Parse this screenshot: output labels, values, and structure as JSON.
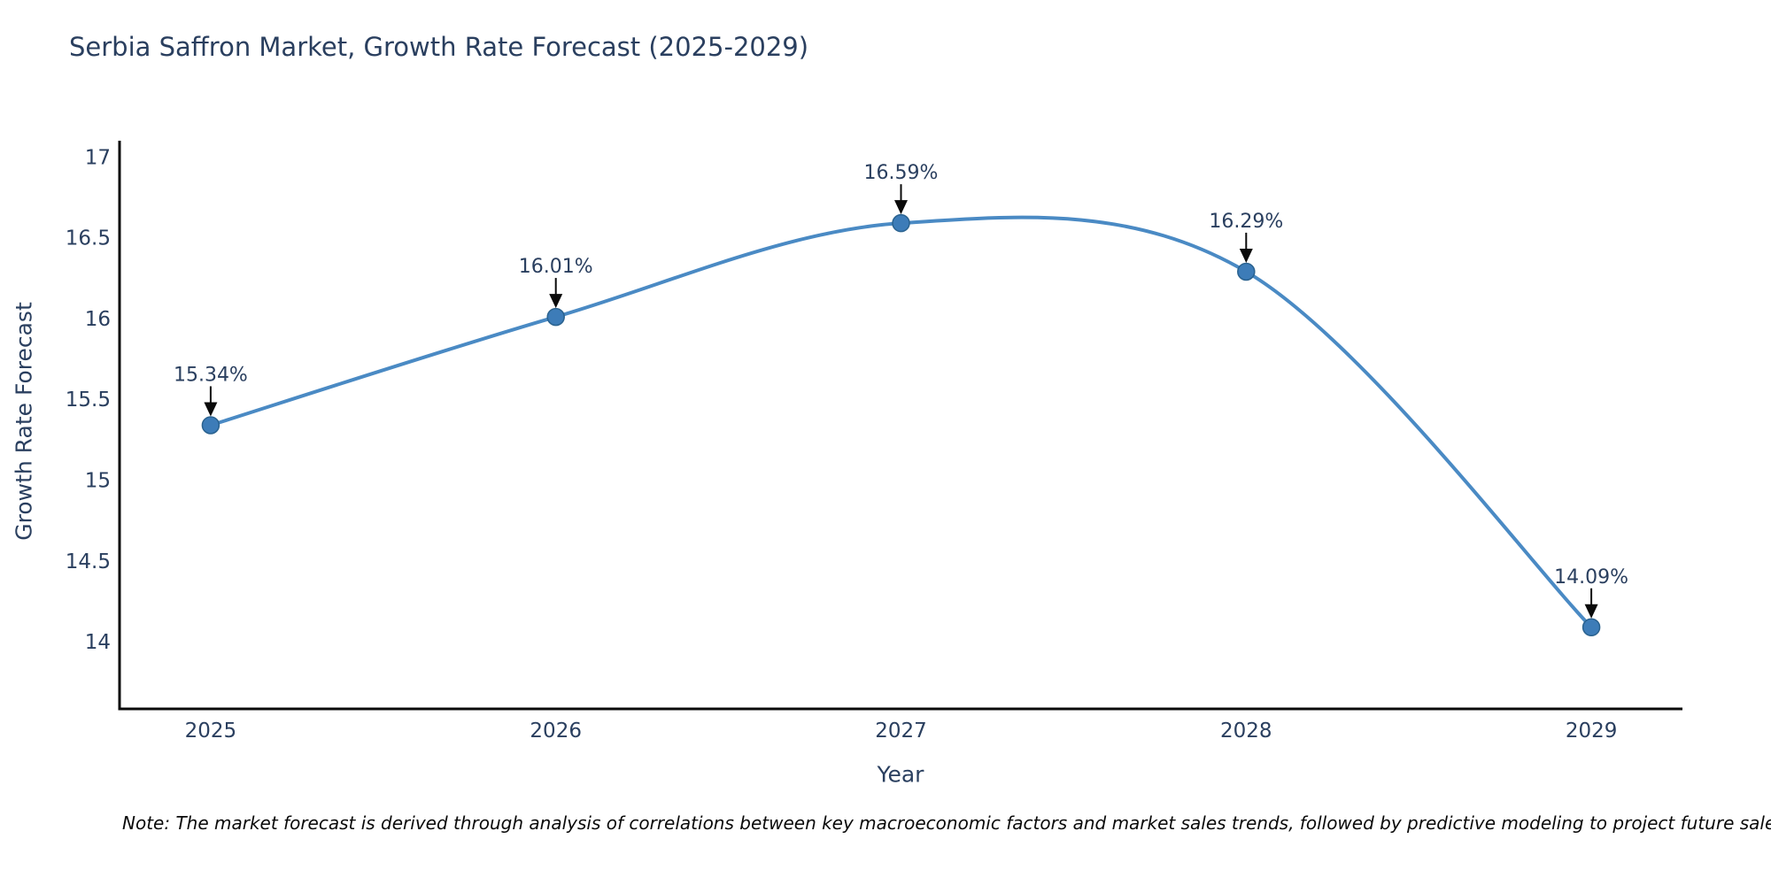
{
  "title": "Serbia Saffron Market, Growth Rate Forecast (2025-2029)",
  "note": "Note: The market forecast is derived through analysis of correlations between key macroeconomic factors and market sales trends, followed by predictive modeling to project future sales",
  "chart_data": {
    "type": "line",
    "title": "Serbia Saffron Market, Growth Rate Forecast (2025-2029)",
    "xlabel": "Year",
    "ylabel": "Growth Rate Forecast",
    "categories": [
      "2025",
      "2026",
      "2027",
      "2028",
      "2029"
    ],
    "series": [
      {
        "name": "Growth Rate Forecast",
        "values": [
          15.34,
          16.01,
          16.59,
          16.29,
          14.09
        ]
      }
    ],
    "point_labels": [
      "15.34%",
      "16.01%",
      "16.59%",
      "16.29%",
      "14.09%"
    ],
    "y_ticks": [
      14,
      14.5,
      15,
      15.5,
      16,
      16.5,
      17
    ],
    "ylim": [
      13.585,
      17.1
    ],
    "grid": false,
    "legend": "none",
    "line_shape": "spline",
    "colors": {
      "line": "#4a8ac4",
      "marker": "#3d7cb8",
      "marker_edge": "#2a628f",
      "text": "#2a3f5f",
      "axis": "#0a0a0a",
      "arrow": "#0a0a0a"
    }
  }
}
